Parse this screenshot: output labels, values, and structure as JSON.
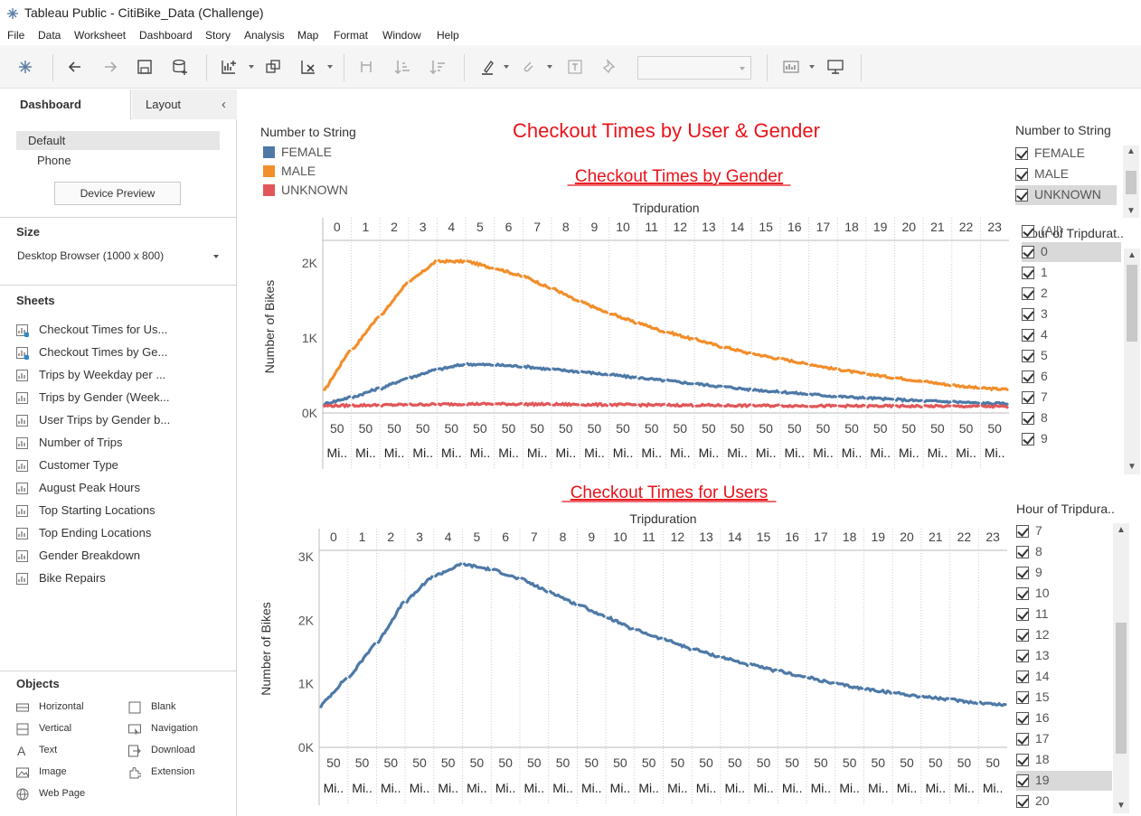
{
  "window": {
    "title": "Tableau Public - CitiBike_Data (Challenge)"
  },
  "menu": [
    "File",
    "Data",
    "Worksheet",
    "Dashboard",
    "Story",
    "Analysis",
    "Map",
    "Format",
    "Window",
    "Help"
  ],
  "toolbar": {
    "icons": [
      "tableau-logo-icon",
      "undo-icon",
      "redo-icon",
      "save-icon",
      "new-datasource-icon",
      "new-worksheet-icon",
      "duplicate-icon",
      "clear-icon",
      "swap-icon",
      "sort-ascending-icon",
      "sort-descending-icon",
      "highlight-icon",
      "attach-icon",
      "text-label-icon",
      "pin-icon",
      "show-me-icon",
      "presentation-icon"
    ]
  },
  "left_panel": {
    "tabs": [
      "Dashboard",
      "Layout"
    ],
    "collapse_glyph": "‹",
    "device": {
      "selected": "Default",
      "other": "Phone",
      "preview_button": "Device Preview"
    },
    "size": {
      "heading": "Size",
      "value": "Desktop Browser (1000 x 800)"
    },
    "sheets_heading": "Sheets",
    "sheets": [
      {
        "label": "Checkout Times for Us...",
        "used": true
      },
      {
        "label": "Checkout Times by Ge...",
        "used": true
      },
      {
        "label": "Trips by Weekday per ...",
        "used": false
      },
      {
        "label": "Trips by Gender (Week...",
        "used": false
      },
      {
        "label": "User Trips by Gender b...",
        "used": false
      },
      {
        "label": "Number of Trips",
        "used": false
      },
      {
        "label": "Customer Type",
        "used": false
      },
      {
        "label": "August Peak Hours",
        "used": false
      },
      {
        "label": "Top Starting Locations",
        "used": false
      },
      {
        "label": "Top Ending Locations",
        "used": false
      },
      {
        "label": "Gender Breakdown",
        "used": false
      },
      {
        "label": "Bike Repairs",
        "used": false
      }
    ],
    "objects_heading": "Objects",
    "objects": [
      {
        "label": "Horizontal",
        "icon": "horizontal-icon"
      },
      {
        "label": "Blank",
        "icon": "blank-icon"
      },
      {
        "label": "Vertical",
        "icon": "vertical-icon"
      },
      {
        "label": "Navigation",
        "icon": "navigation-icon"
      },
      {
        "label": "Text",
        "icon": "text-icon"
      },
      {
        "label": "Download",
        "icon": "download-icon"
      },
      {
        "label": "Image",
        "icon": "image-icon"
      },
      {
        "label": "Extension",
        "icon": "extension-icon"
      },
      {
        "label": "Web Page",
        "icon": "web-page-icon"
      }
    ]
  },
  "dashboard": {
    "title": "Checkout Times by User & Gender",
    "title_color": "#e8141b",
    "legend": {
      "title": "Number to String",
      "items": [
        {
          "label": "FEMALE",
          "color": "#4e79a7"
        },
        {
          "label": "MALE",
          "color": "#f28e2b"
        },
        {
          "label": "UNKNOWN",
          "color": "#e15759"
        }
      ]
    },
    "gender_filter": {
      "title": "Number to String",
      "items": [
        "FEMALE",
        "MALE",
        "UNKNOWN"
      ],
      "selected": "UNKNOWN"
    },
    "hour_filter_1": {
      "title": "Hour of Tripdurat..",
      "items": [
        "(All)",
        "0",
        "1",
        "2",
        "3",
        "4",
        "5",
        "6",
        "7",
        "8",
        "9"
      ],
      "selected": "0"
    },
    "hour_filter_2": {
      "title": "Hour of Tripdura..",
      "items": [
        "7",
        "8",
        "9",
        "10",
        "11",
        "12",
        "13",
        "14",
        "15",
        "16",
        "17",
        "18",
        "19",
        "20"
      ],
      "selected": "19"
    }
  },
  "chart_data": [
    {
      "type": "line",
      "title": "Checkout Times by Gender",
      "xlabel": "Tripduration",
      "ylabel": "Number of Bikes",
      "column_headers": [
        "0",
        "1",
        "2",
        "3",
        "4",
        "5",
        "6",
        "7",
        "8",
        "9",
        "10",
        "11",
        "12",
        "13",
        "14",
        "15",
        "16",
        "17",
        "18",
        "19",
        "20",
        "21",
        "22",
        "23"
      ],
      "sub_label_top": "50",
      "sub_label_bottom": "Mi..",
      "y_ticks": [
        "0K",
        "1K",
        "2K"
      ],
      "ylim": [
        0,
        2300
      ],
      "series": [
        {
          "name": "MALE",
          "color": "#f28e2b",
          "values": [
            300,
            850,
            1300,
            1750,
            2020,
            2020,
            1930,
            1820,
            1660,
            1480,
            1330,
            1200,
            1080,
            980,
            880,
            790,
            720,
            650,
            580,
            520,
            470,
            420,
            370,
            330
          ]
        },
        {
          "name": "FEMALE",
          "color": "#4e79a7",
          "values": [
            120,
            210,
            330,
            470,
            580,
            650,
            640,
            620,
            580,
            550,
            510,
            470,
            430,
            390,
            350,
            310,
            280,
            250,
            220,
            200,
            180,
            160,
            150,
            130
          ]
        },
        {
          "name": "UNKNOWN",
          "color": "#e15759",
          "values": [
            95,
            100,
            105,
            110,
            115,
            120,
            120,
            118,
            115,
            112,
            110,
            108,
            105,
            103,
            100,
            98,
            97,
            95,
            93,
            92,
            91,
            90,
            89,
            88
          ]
        }
      ]
    },
    {
      "type": "line",
      "title": "Checkout Times for Users",
      "xlabel": "Tripduration",
      "ylabel": "Number of Bikes",
      "column_headers": [
        "0",
        "1",
        "2",
        "3",
        "4",
        "5",
        "6",
        "7",
        "8",
        "9",
        "10",
        "11",
        "12",
        "13",
        "14",
        "15",
        "16",
        "17",
        "18",
        "19",
        "20",
        "21",
        "22",
        "23"
      ],
      "sub_label_top": "50",
      "sub_label_bottom": "Mi..",
      "y_ticks": [
        "0K",
        "1K",
        "2K",
        "3K"
      ],
      "ylim": [
        0,
        3100
      ],
      "series": [
        {
          "name": "",
          "color": "#4e79a7",
          "values": [
            650,
            1100,
            1650,
            2300,
            2700,
            2880,
            2800,
            2650,
            2450,
            2250,
            2050,
            1850,
            1700,
            1550,
            1420,
            1300,
            1200,
            1100,
            1000,
            920,
            860,
            800,
            750,
            700
          ]
        }
      ]
    }
  ]
}
